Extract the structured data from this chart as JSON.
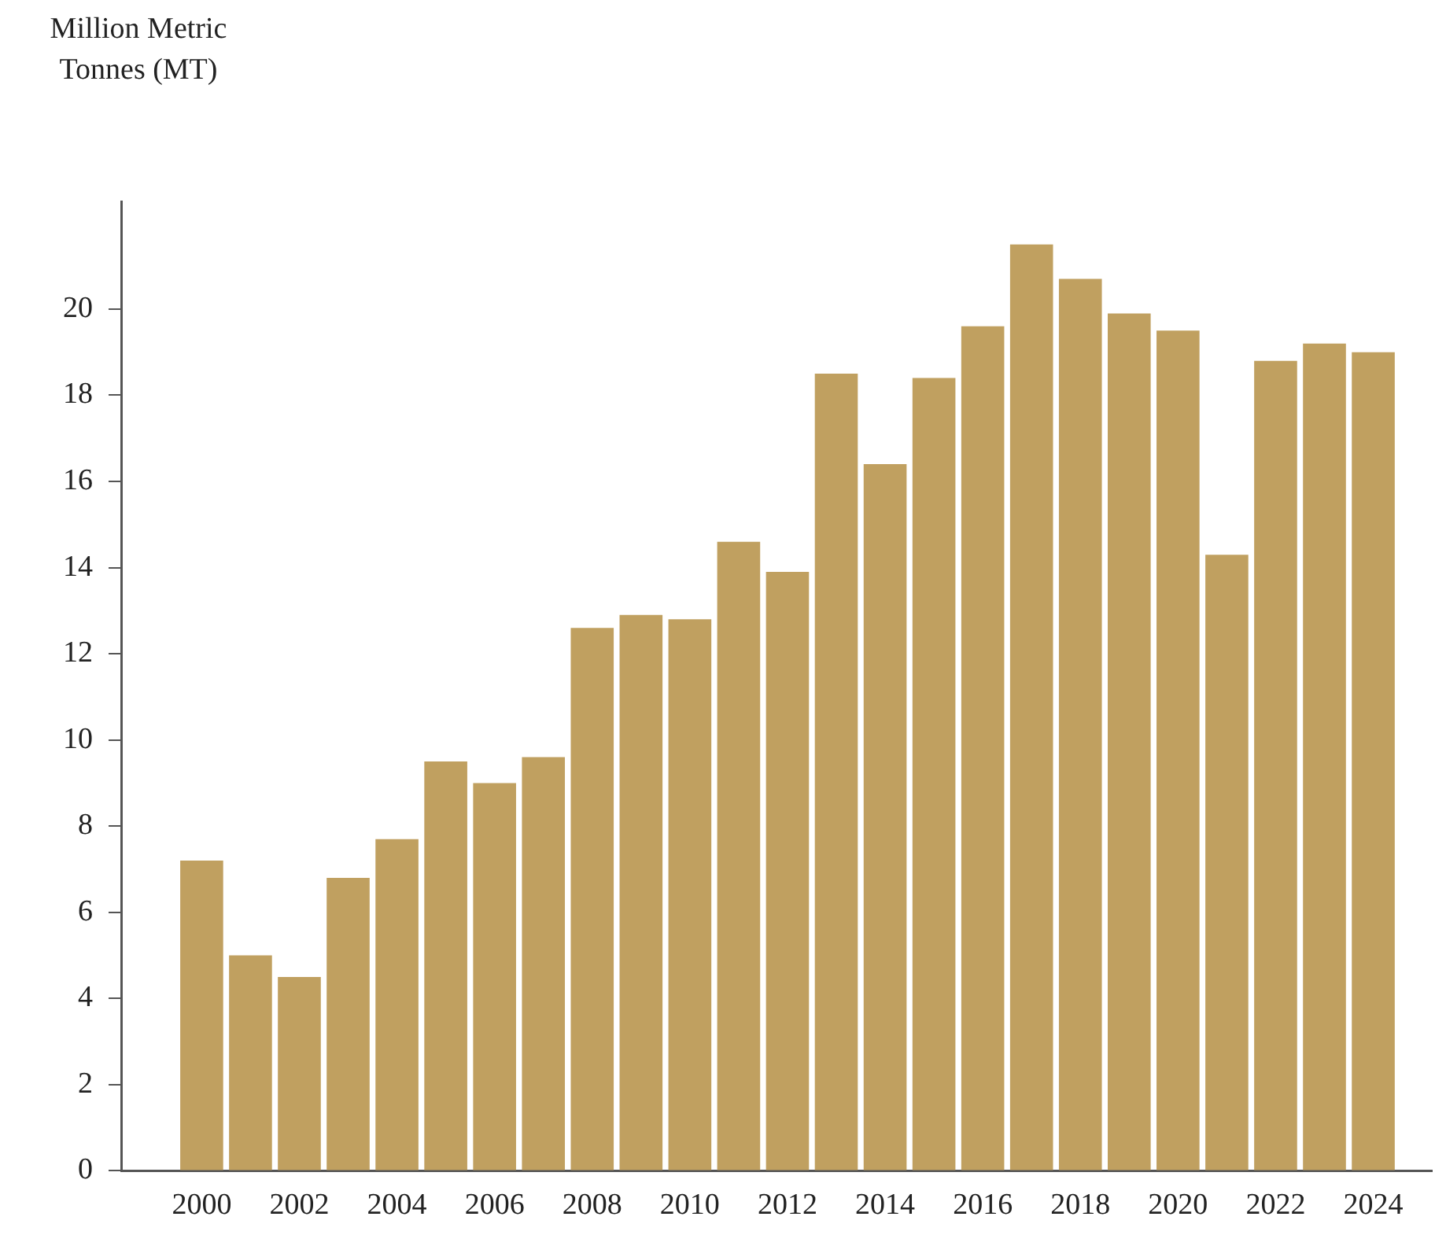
{
  "chart_data": {
    "type": "bar",
    "ylabel": "Million Metric Tonnes (MT)",
    "categories": [
      "2000",
      null,
      "2002",
      null,
      "2004",
      null,
      "2006",
      null,
      "2008",
      null,
      "2010",
      null,
      "2012",
      null,
      "2014",
      null,
      "2016",
      null,
      "2018",
      null,
      "2020",
      null,
      "2022",
      null,
      "2024"
    ],
    "values": [
      7.2,
      5.0,
      4.5,
      6.8,
      7.7,
      9.5,
      9.0,
      9.6,
      12.6,
      12.9,
      12.8,
      14.6,
      13.9,
      18.5,
      16.4,
      18.4,
      19.6,
      21.5,
      20.7,
      19.9,
      19.5,
      14.3,
      18.8,
      19.2,
      19.0
    ],
    "color": "#c0a060",
    "ylim": [
      0,
      22.5
    ],
    "yticks": [
      0,
      2,
      4,
      6,
      8,
      10,
      12,
      14,
      16,
      18,
      20
    ],
    "grid": false,
    "legend": false
  }
}
